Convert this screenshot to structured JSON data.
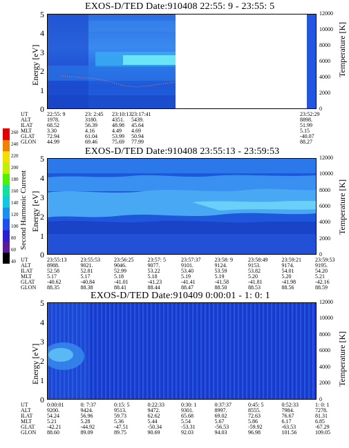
{
  "panels": [
    {
      "title": "EXOS-D/TED   Date:910408  22:55: 9 - 23:55: 5",
      "y_axis_label": "Energy [eV]",
      "y_ticks": [
        "0",
        "1",
        "2",
        "3",
        "4",
        "5"
      ],
      "temp_axis_label": "Temperature [K]",
      "temp_ticks": [
        "0",
        "2000",
        "4000",
        "6000",
        "8000",
        "10000",
        "12000"
      ],
      "row_labels": [
        "UT",
        "ALT",
        "ILAT",
        "MLT",
        "GLAT",
        "GLON"
      ],
      "columns": [
        [
          "22:55: 9",
          "1978.",
          "68.52",
          "3.30",
          "72.94",
          "44.99"
        ],
        [
          "23: 2:45",
          "3180.",
          "56.39",
          "4.16",
          "61.04",
          "69.46"
        ],
        [
          "23:10:13",
          "4351.",
          "48.98",
          "4.49",
          "53.99",
          "75.69"
        ],
        [
          "23:17:41",
          "5439.",
          "45.64",
          "4.69",
          "50.94",
          "77.99"
        ],
        [
          "23:52:29",
          "8898.",
          "51.99",
          "5.15",
          "-40.07",
          "88.27"
        ]
      ]
    },
    {
      "title": "EXOS-D/TED   Date:910408  23:55:13 - 23:59:53",
      "y_axis_label": "Energy [eV]",
      "y_ticks": [
        "0",
        "1",
        "2",
        "3",
        "4",
        "5"
      ],
      "temp_axis_label": "Temperature [K]",
      "temp_ticks": [
        "0",
        "2000",
        "4000",
        "6000",
        "8000",
        "10000",
        "12000"
      ],
      "row_labels": [
        "UT",
        "ALT",
        "ILAT",
        "MLT",
        "GLAT",
        "GLON"
      ],
      "columns": [
        [
          "23:55:13",
          "8988.",
          "52.58",
          "5.17",
          "-40.62",
          "88.35"
        ],
        [
          "23:55:53",
          "9021.",
          "52.81",
          "5.17",
          "-40.84",
          "88.38"
        ],
        [
          "23:56:25",
          "9046.",
          "52.99",
          "5.18",
          "-41.01",
          "88.41"
        ],
        [
          "23:57: 5",
          "9077.",
          "53.22",
          "5.18",
          "-41.23",
          "88.44"
        ],
        [
          "23:57:37",
          "9101.",
          "53.40",
          "5.19",
          "-41.41",
          "88.47"
        ],
        [
          "23:58: 9",
          "9124.",
          "53.59",
          "5.19",
          "-41.58",
          "88.50"
        ],
        [
          "23:58:49",
          "9153.",
          "53.82",
          "5.20",
          "-41.81",
          "88.53"
        ],
        [
          "23:59:21",
          "9174.",
          "54.01",
          "5.20",
          "-41.98",
          "88.56"
        ],
        [
          "23:59:53",
          "9195.",
          "54.20",
          "5.21",
          "-42.16",
          "88.59"
        ]
      ]
    },
    {
      "title": "EXOS-D/TED   Date:910409  0:00:01 - 1: 0: 1",
      "y_axis_label": "Energy [eV]",
      "y_ticks": [
        "0",
        "1",
        "2",
        "3",
        "4",
        "5"
      ],
      "temp_axis_label": "Temperature [K]",
      "temp_ticks": [
        "0",
        "2000",
        "4000",
        "6000",
        "8000",
        "10000",
        "12000"
      ],
      "row_labels": [
        "UT",
        "ALT",
        "ILAT",
        "MLT",
        "GLAT",
        "GLON"
      ],
      "columns": [
        [
          "0:00:01",
          "9200.",
          "54.24",
          "5.21",
          "-42.21",
          "88.60"
        ],
        [
          "0: 7:37",
          "9424.",
          "56.96",
          "5.28",
          "-44.92",
          "89.09"
        ],
        [
          "0:15: 5",
          "9513.",
          "59.73",
          "5.36",
          "-47.51",
          "89.75"
        ],
        [
          "0:22:33",
          "9472.",
          "62.62",
          "5.44",
          "-50.34",
          "90.69"
        ],
        [
          "0:30: 1",
          "9301.",
          "65.68",
          "5.54",
          "-53.31",
          "92.03"
        ],
        [
          "0:37:37",
          "8997.",
          "69.02",
          "5.67",
          "-56.53",
          "94.03"
        ],
        [
          "0:45: 5",
          "8555.",
          "72.63",
          "5.86",
          "-59.92",
          "96.98"
        ],
        [
          "0:52:33",
          "7984.",
          "76.67",
          "6.17",
          "-63.53",
          "101.56"
        ],
        [
          "1: 0: 1",
          "7278.",
          "81.31",
          "6.85",
          "-67.29",
          "109.05"
        ]
      ]
    }
  ],
  "colorbar": {
    "label": "Second Harmonic Current",
    "ticks": [
      "40",
      "60",
      "80",
      "100",
      "120",
      "140",
      "160",
      "180",
      "200",
      "220",
      "240",
      "260"
    ],
    "colors": [
      "#000000",
      "#5a1a9c",
      "#2a1fd0",
      "#1e50f0",
      "#1990f0",
      "#10c8e0",
      "#10e0a0",
      "#50f000",
      "#c0f000",
      "#f0e000",
      "#f08000",
      "#e00000"
    ]
  },
  "chart_data": [
    {
      "type": "heatmap",
      "title": "EXOS-D/TED   Date:910408  22:55: 9 - 23:55: 5",
      "ylabel": "Energy [eV]",
      "ylim": [
        0,
        5
      ],
      "right_axis": {
        "label": "Temperature [K]",
        "lim": [
          0,
          12000
        ]
      },
      "x_tick_labels": [
        "22:55: 9",
        "23: 2:45",
        "23:10:13",
        "23:17:41",
        "23:52:29"
      ],
      "temperature_trace": {
        "x": [
          "23: 2:45",
          "23:10:13",
          "23:17:41"
        ],
        "y": [
          2000,
          1300,
          1600
        ]
      }
    },
    {
      "type": "heatmap",
      "title": "EXOS-D/TED   Date:910408  23:55:13 - 23:59:53",
      "ylabel": "Energy [eV]",
      "ylim": [
        0,
        5
      ],
      "right_axis": {
        "label": "Temperature [K]",
        "lim": [
          0,
          12000
        ]
      },
      "x_tick_labels": [
        "23:55:13",
        "23:55:53",
        "23:56:25",
        "23:57: 5",
        "23:57:37",
        "23:58: 9",
        "23:58:49",
        "23:59:21",
        "23:59:53"
      ]
    },
    {
      "type": "heatmap",
      "title": "EXOS-D/TED   Date:910409  0:00:01 - 1: 0: 1",
      "ylabel": "Energy [eV]",
      "ylim": [
        0,
        5
      ],
      "right_axis": {
        "label": "Temperature [K]",
        "lim": [
          0,
          12000
        ]
      },
      "x_tick_labels": [
        "0:00:01",
        "0: 7:37",
        "0:15: 5",
        "0:22:33",
        "0:30: 1",
        "0:37:37",
        "0:45: 5",
        "0:52:33",
        "1: 0: 1"
      ]
    }
  ]
}
